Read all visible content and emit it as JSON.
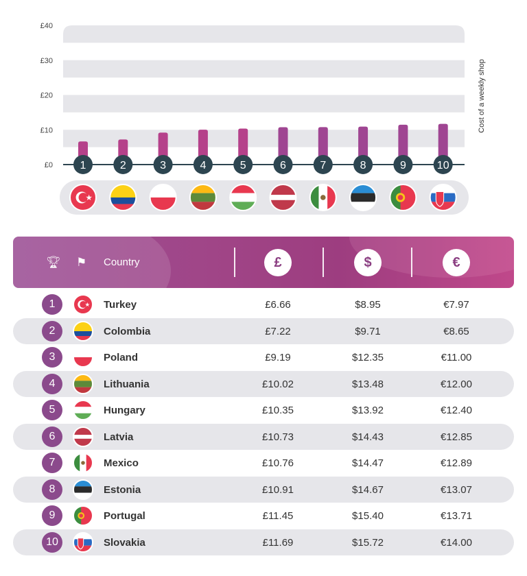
{
  "chart_data": {
    "type": "bar",
    "categories": [
      "1",
      "2",
      "3",
      "4",
      "5",
      "6",
      "7",
      "8",
      "9",
      "10"
    ],
    "countries": [
      "Turkey",
      "Colombia",
      "Poland",
      "Lithuania",
      "Hungary",
      "Latvia",
      "Mexico",
      "Estonia",
      "Portugal",
      "Slovakia"
    ],
    "values": [
      6.66,
      7.22,
      9.19,
      10.02,
      10.35,
      10.73,
      10.76,
      10.91,
      11.45,
      11.69
    ],
    "ylabel": "Cost of a weekly shop",
    "ylim": [
      0,
      40
    ],
    "yticks": [
      "£0",
      "£10",
      "£20",
      "£30",
      "£40"
    ],
    "grid": "alternating bands",
    "bar_color": "#a63f8a"
  },
  "table": {
    "header": {
      "country": "Country",
      "gbp": "£",
      "usd": "$",
      "eur": "€",
      "rank_icon": "trophy-icon",
      "flag_icon": "flag-icon"
    },
    "rows": [
      {
        "rank": "1",
        "country": "Turkey",
        "gbp": "£6.66",
        "usd": "$8.95",
        "eur": "€7.97"
      },
      {
        "rank": "2",
        "country": "Colombia",
        "gbp": "£7.22",
        "usd": "$9.71",
        "eur": "€8.65"
      },
      {
        "rank": "3",
        "country": "Poland",
        "gbp": "£9.19",
        "usd": "$12.35",
        "eur": "€11.00"
      },
      {
        "rank": "4",
        "country": "Lithuania",
        "gbp": "£10.02",
        "usd": "$13.48",
        "eur": "€12.00"
      },
      {
        "rank": "5",
        "country": "Hungary",
        "gbp": "£10.35",
        "usd": "$13.92",
        "eur": "€12.40"
      },
      {
        "rank": "6",
        "country": "Latvia",
        "gbp": "£10.73",
        "usd": "$14.43",
        "eur": "€12.85"
      },
      {
        "rank": "7",
        "country": "Mexico",
        "gbp": "£10.76",
        "usd": "$14.47",
        "eur": "€12.89"
      },
      {
        "rank": "8",
        "country": "Estonia",
        "gbp": "£10.91",
        "usd": "$14.67",
        "eur": "€13.07"
      },
      {
        "rank": "9",
        "country": "Portugal",
        "gbp": "£11.45",
        "usd": "$15.40",
        "eur": "€13.71"
      },
      {
        "rank": "10",
        "country": "Slovakia",
        "gbp": "£11.69",
        "usd": "$15.72",
        "eur": "€14.00"
      }
    ]
  },
  "colors": {
    "accent": "#8b4a8c",
    "axis": "#2d4550",
    "band": "#e6e6ea"
  }
}
